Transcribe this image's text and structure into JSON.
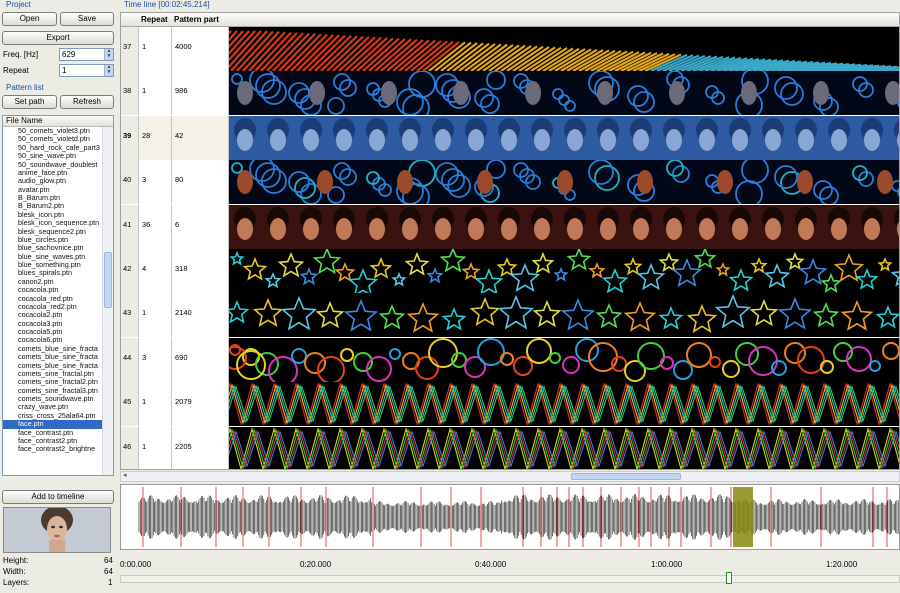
{
  "project": {
    "group_label": "Project",
    "open_label": "Open",
    "save_label": "Save",
    "export_label": "Export",
    "freq_label": "Freq. [Hz]",
    "freq_value": "629",
    "repeat_label": "Repeat",
    "repeat_value": "1"
  },
  "pattern_list": {
    "group_label": "Pattern list",
    "set_path_label": "Set path",
    "refresh_label": "Refresh",
    "column_header": "File Name",
    "files": [
      "50_comets_violet3.ptn",
      "50_comets_violetd.ptn",
      "50_hard_rock_cafe_part3",
      "50_sine_wave.ptn",
      "50_soundwave_doublest",
      "anime_face.ptn",
      "audio_glow.ptn",
      "avatar.ptn",
      "B_Barum.ptn",
      "B_Barum2.ptn",
      "blesk_icon.ptn",
      "blesk_icon_sequence.ptn",
      "blesk_sequence2.ptn",
      "blue_circles.ptn",
      "blue_sachovnice.ptn",
      "blue_sine_waves.ptn",
      "blue_something.ptn",
      "blues_spirals.ptn",
      "canon2.ptn",
      "cocacola.ptn",
      "cocacola_red.ptn",
      "cocacola_red2.ptn",
      "cocacola2.ptn",
      "cocacola3.ptn",
      "cocacola5.ptn",
      "cocacola6.ptn",
      "comets_blue_sine_fracta",
      "comets_blue_sine_fracta",
      "comets_blue_sine_fracta",
      "comets_sine_fractal.ptn",
      "comets_sine_fractal2.ptn",
      "comets_sine_fractal3.ptn",
      "comets_soundwave.ptn",
      "crazy_wave.ptn",
      "criss_cross_25ala64.ptn",
      "face.ptn",
      "face_contrast.ptn",
      "face_contrast2.ptn",
      "face_contrast2_brightne"
    ],
    "selected_index": 35,
    "add_label": "Add to timeline"
  },
  "info": {
    "height_label": "Height:",
    "height_value": "64",
    "width_label": "Width:",
    "width_value": "64",
    "layers_label": "Layers:",
    "layers_value": "1"
  },
  "timeline": {
    "group_label": "Time line [00:02:45.214]",
    "col_repeat": "Repeat",
    "col_pattern": "Pattern part",
    "rows": [
      {
        "id": "37",
        "repeat": "1",
        "part": "4000",
        "kind": "ramp",
        "selected": false
      },
      {
        "id": "38",
        "repeat": "1",
        "part": "986",
        "kind": "swirls",
        "selected": false
      },
      {
        "id": "39",
        "repeat": "28",
        "part": "42",
        "kind": "faces-blue",
        "selected": true
      },
      {
        "id": "40",
        "repeat": "3",
        "part": "80",
        "kind": "rings",
        "selected": false
      },
      {
        "id": "41",
        "repeat": "36",
        "part": "6",
        "kind": "faces-red",
        "selected": false
      },
      {
        "id": "42",
        "repeat": "4",
        "part": "318",
        "kind": "stars",
        "selected": false
      },
      {
        "id": "43",
        "repeat": "1",
        "part": "2140",
        "kind": "stars-big",
        "selected": false
      },
      {
        "id": "44",
        "repeat": "3",
        "part": "690",
        "kind": "circles",
        "selected": false
      },
      {
        "id": "45",
        "repeat": "1",
        "part": "2079",
        "kind": "zigzag",
        "selected": false
      },
      {
        "id": "46",
        "repeat": "1",
        "part": "2205",
        "kind": "zigzag2",
        "selected": false
      }
    ]
  },
  "time_ticks": [
    "0:00.000",
    "0:20.000",
    "0:40.000",
    "1:00.000",
    "1:20.000"
  ],
  "colors": {
    "accent": "#316ac5",
    "group_title": "#1c4fa8",
    "marker": "#e0202a",
    "playhead": "#8a8a10"
  }
}
